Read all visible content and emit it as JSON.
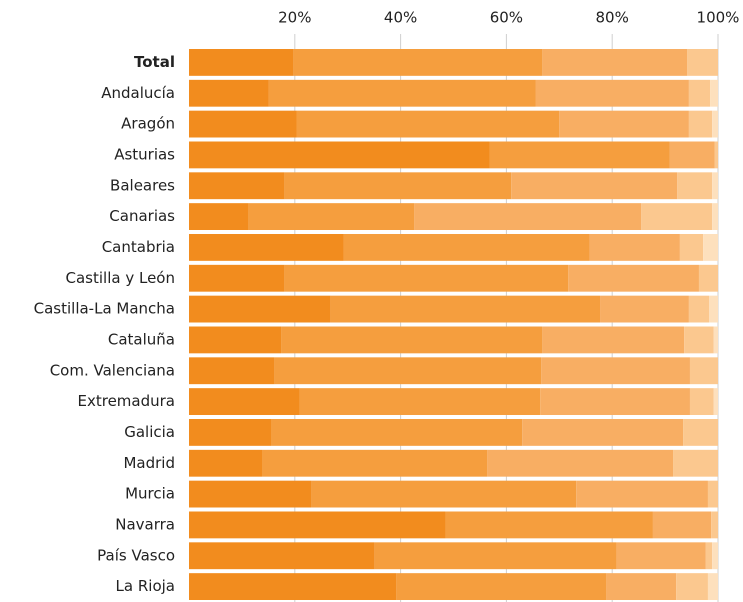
{
  "chart_data": {
    "type": "stacked_barh",
    "categories": [
      "Total",
      "Andalucía",
      "Aragón",
      "Asturias",
      "Baleares",
      "Canarias",
      "Cantabria",
      "Castilla y León",
      "Castilla-La Mancha",
      "Cataluña",
      "Com. Valenciana",
      "Extremadura",
      "Galicia",
      "Madrid",
      "Murcia",
      "Navarra",
      "País Vasco",
      "La Rioja"
    ],
    "series": [
      {
        "color": "#f28c1e",
        "values": [
          19.8,
          15.1,
          20.4,
          56.8,
          18.1,
          11.3,
          29.2,
          18.1,
          26.8,
          17.4,
          16.2,
          20.9,
          15.5,
          13.8,
          23.2,
          48.5,
          35.1,
          39.2
        ]
      },
      {
        "color": "#f59e3e",
        "values": [
          47.0,
          50.4,
          49.6,
          34.1,
          42.8,
          31.3,
          46.5,
          53.6,
          50.9,
          49.4,
          50.4,
          45.5,
          47.5,
          42.6,
          50.0,
          39.2,
          45.7,
          39.7
        ]
      },
      {
        "color": "#f8ae63",
        "values": [
          27.4,
          29.0,
          24.5,
          8.5,
          31.4,
          42.9,
          17.1,
          24.7,
          16.8,
          26.8,
          28.1,
          28.3,
          30.4,
          35.1,
          24.9,
          11.0,
          16.9,
          13.2
        ]
      },
      {
        "color": "#fbc88f",
        "values": [
          5.8,
          4.0,
          4.4,
          0.6,
          6.6,
          13.4,
          4.4,
          3.6,
          3.8,
          5.6,
          5.3,
          4.5,
          6.6,
          8.5,
          1.9,
          1.3,
          1.2,
          6.0
        ]
      },
      {
        "color": "#fde0bd",
        "values": [
          0,
          1.5,
          1.1,
          0,
          1.1,
          1.1,
          2.8,
          0,
          1.7,
          0.8,
          0,
          0.8,
          0,
          0,
          0,
          0,
          1.1,
          1.9
        ]
      }
    ],
    "xlim": [
      0,
      100
    ],
    "xticks": [
      {
        "value": 20,
        "label": "20%"
      },
      {
        "value": 40,
        "label": "40%"
      },
      {
        "value": 60,
        "label": "60%"
      },
      {
        "value": 80,
        "label": "80%"
      },
      {
        "value": 100,
        "label": "100%"
      }
    ],
    "grid": true
  }
}
